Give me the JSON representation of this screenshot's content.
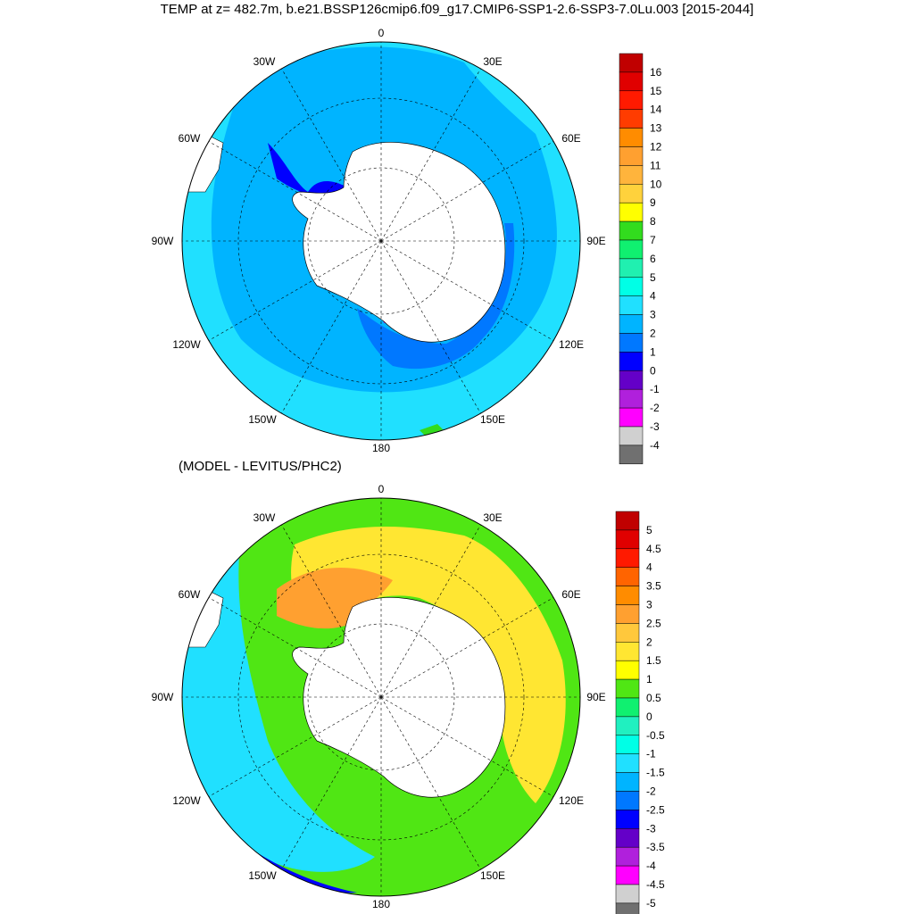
{
  "title": "TEMP at z= 482.7m, b.e21.BSSP126cmip6.f09_g17.CMIP6-SSP1-2.6-SSP3-7.0Lu.003 [2015-2044]",
  "subtitle": "(MODEL - LEVITUS/PHC2)",
  "longitude_labels": [
    "0",
    "30E",
    "60E",
    "90E",
    "120E",
    "150E",
    "180",
    "150W",
    "120W",
    "90W",
    "60W",
    "30W"
  ],
  "top_colorbar": {
    "labels": [
      "16",
      "15",
      "14",
      "13",
      "12",
      "11",
      "10",
      "9",
      "8",
      "7",
      "6",
      "5",
      "4",
      "3",
      "2",
      "1",
      "0",
      "-1",
      "-2",
      "-3",
      "-4"
    ],
    "colors": [
      "#c00000",
      "#e00000",
      "#ff1a00",
      "#ff3c00",
      "#ff8c00",
      "#ffa030",
      "#ffb43c",
      "#ffd23c",
      "#ffff00",
      "#32dc1e",
      "#10f070",
      "#20f0b0",
      "#00ffe6",
      "#20e0ff",
      "#00b4ff",
      "#0078ff",
      "#0000ff",
      "#6400c8",
      "#b020dc",
      "#ff00ff",
      "#d0d0d0",
      "#707070"
    ]
  },
  "bottom_colorbar": {
    "labels": [
      "5",
      "4.5",
      "4",
      "3.5",
      "3",
      "2.5",
      "2",
      "1.5",
      "1",
      "0.5",
      "0",
      "-0.5",
      "-1",
      "-1.5",
      "-2",
      "-2.5",
      "-3",
      "-3.5",
      "-4",
      "-4.5",
      "-5"
    ],
    "colors": [
      "#c00000",
      "#e00000",
      "#ff1a00",
      "#ff6400",
      "#ff8c00",
      "#ffa030",
      "#ffc83c",
      "#ffe632",
      "#ffff00",
      "#50e614",
      "#10f070",
      "#20f0c0",
      "#00ffe6",
      "#20e0ff",
      "#00b4ff",
      "#0078ff",
      "#0000ff",
      "#6400c8",
      "#b020dc",
      "#ff00ff",
      "#d0d0d0",
      "#707070"
    ]
  },
  "colors": {
    "land": "#ffffff",
    "coast": "#000000",
    "top_background": "#00b4ff",
    "top_outer": "#20e0ff",
    "bottom_background": "#50e614",
    "bottom_warm": "#ffd23c",
    "bottom_cool": "#20e0ff"
  }
}
